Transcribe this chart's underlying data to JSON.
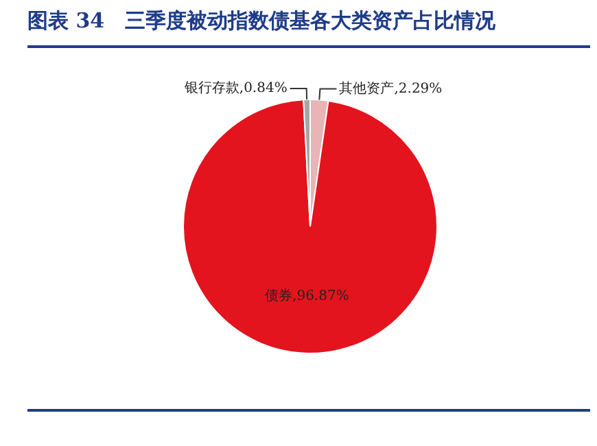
{
  "chart_data": {
    "type": "pie",
    "title": "图表 34　三季度被动指数债基各大类资产占比情况",
    "categories": [
      "其他资产",
      "债券",
      "银行存款"
    ],
    "values": [
      2.29,
      96.87,
      0.84
    ],
    "value_labels": [
      "2.29%",
      "96.87%",
      "0.84%"
    ],
    "colors": [
      "#e8b4b6",
      "#e3141d",
      "#a6a6a6"
    ],
    "legend": false
  }
}
